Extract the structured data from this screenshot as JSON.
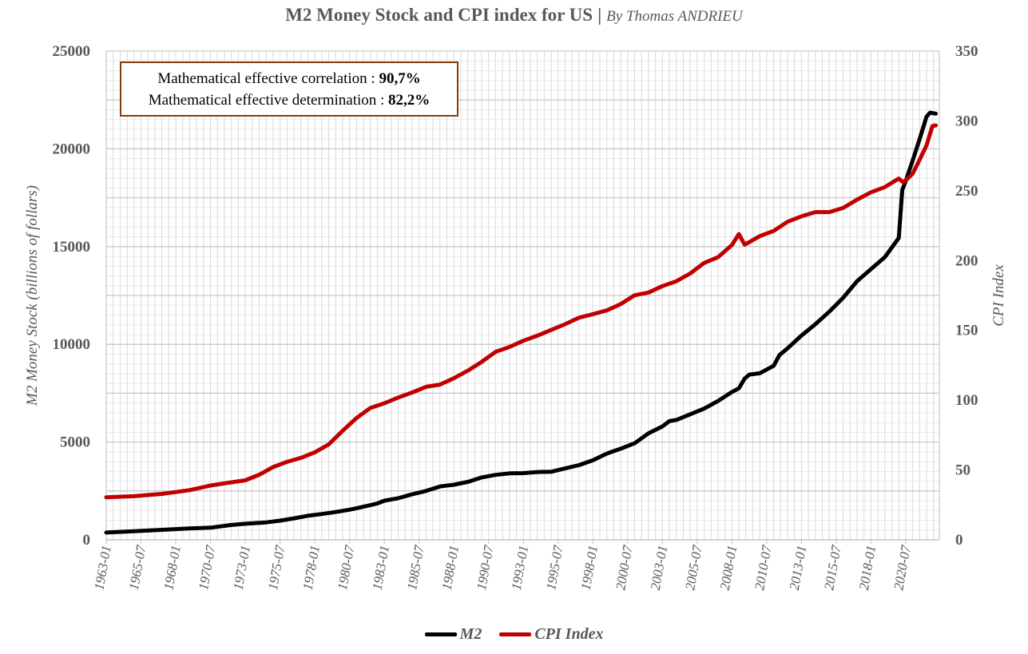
{
  "title": "M2 Money Stock and CPI index for US",
  "title_separator": "|",
  "subtitle": "By Thomas ANDRIEU",
  "stats": {
    "correlation_label": "Mathematical effective correlation : ",
    "correlation_value": "90,7%",
    "determination_label": "Mathematical effective determination : ",
    "determination_value": "82,2%"
  },
  "legend": {
    "m2_label": "M2",
    "cpi_label": "CPI Index"
  },
  "colors": {
    "m2": "#000000",
    "cpi": "#c00000",
    "box_border": "#843c0c",
    "grid": "#d9d9d9"
  },
  "chart_data": {
    "type": "line",
    "title": "M2 Money Stock and CPI index for US",
    "subtitle": "By Thomas ANDRIEU",
    "ylabel": "M2 Money Stock (billions of follars)",
    "y2label": "CPI Index",
    "xlabel": "",
    "ylim": [
      0,
      25000
    ],
    "y2lim": [
      0,
      350
    ],
    "xlim": [
      "1963-01",
      "2022-12"
    ],
    "y_ticks": [
      "0",
      "5000",
      "10000",
      "15000",
      "20000",
      "25000"
    ],
    "y2_ticks": [
      "0",
      "50",
      "100",
      "150",
      "200",
      "250",
      "300",
      "350"
    ],
    "x_ticks": [
      "1963-01",
      "1965-07",
      "1968-01",
      "1970-07",
      "1973-01",
      "1975-07",
      "1978-01",
      "1980-07",
      "1983-01",
      "1985-07",
      "1988-01",
      "1990-07",
      "1993-01",
      "1995-07",
      "1998-01",
      "2000-07",
      "2003-01",
      "2005-07",
      "2008-01",
      "2010-07",
      "2013-01",
      "2015-07",
      "2018-01",
      "2020-07"
    ],
    "grid": true,
    "legend_position": "bottom",
    "series": [
      {
        "name": "M2",
        "axis": "left",
        "points": [
          [
            "1963-01",
            370
          ],
          [
            "1965-01",
            440
          ],
          [
            "1967-01",
            510
          ],
          [
            "1969-01",
            580
          ],
          [
            "1970-07",
            620
          ],
          [
            "1972-01",
            760
          ],
          [
            "1973-01",
            820
          ],
          [
            "1974-07",
            890
          ],
          [
            "1975-07",
            980
          ],
          [
            "1976-07",
            1100
          ],
          [
            "1977-07",
            1230
          ],
          [
            "1978-07",
            1320
          ],
          [
            "1979-07",
            1420
          ],
          [
            "1980-07",
            1540
          ],
          [
            "1981-07",
            1690
          ],
          [
            "1982-07",
            1860
          ],
          [
            "1983-01",
            2000
          ],
          [
            "1984-01",
            2130
          ],
          [
            "1985-01",
            2330
          ],
          [
            "1986-01",
            2500
          ],
          [
            "1987-01",
            2730
          ],
          [
            "1988-01",
            2820
          ],
          [
            "1989-01",
            2960
          ],
          [
            "1990-01",
            3190
          ],
          [
            "1991-01",
            3320
          ],
          [
            "1992-01",
            3400
          ],
          [
            "1993-01",
            3410
          ],
          [
            "1994-01",
            3470
          ],
          [
            "1995-01",
            3480
          ],
          [
            "1996-01",
            3650
          ],
          [
            "1997-01",
            3820
          ],
          [
            "1998-01",
            4070
          ],
          [
            "1999-01",
            4410
          ],
          [
            "2000-01",
            4660
          ],
          [
            "2001-01",
            4940
          ],
          [
            "2002-01",
            5450
          ],
          [
            "2003-01",
            5800
          ],
          [
            "2003-07",
            6070
          ],
          [
            "2004-01",
            6130
          ],
          [
            "2005-01",
            6420
          ],
          [
            "2006-01",
            6710
          ],
          [
            "2007-01",
            7100
          ],
          [
            "2008-01",
            7560
          ],
          [
            "2008-07",
            7750
          ],
          [
            "2008-12",
            8250
          ],
          [
            "2009-04",
            8450
          ],
          [
            "2010-01",
            8520
          ],
          [
            "2011-01",
            8900
          ],
          [
            "2011-06",
            9450
          ],
          [
            "2012-01",
            9800
          ],
          [
            "2013-01",
            10450
          ],
          [
            "2014-01",
            11030
          ],
          [
            "2015-01",
            11670
          ],
          [
            "2016-01",
            12380
          ],
          [
            "2017-01",
            13230
          ],
          [
            "2018-01",
            13850
          ],
          [
            "2019-01",
            14460
          ],
          [
            "2020-01",
            15440
          ],
          [
            "2020-04",
            17900
          ],
          [
            "2020-07",
            18350
          ],
          [
            "2021-01",
            19400
          ],
          [
            "2021-07",
            20500
          ],
          [
            "2022-01",
            21650
          ],
          [
            "2022-04",
            21850
          ],
          [
            "2022-09",
            21800
          ]
        ]
      },
      {
        "name": "CPI Index",
        "axis": "right",
        "points": [
          [
            "1963-01",
            30.4
          ],
          [
            "1965-01",
            31.2
          ],
          [
            "1967-01",
            32.9
          ],
          [
            "1969-01",
            35.6
          ],
          [
            "1970-07",
            38.9
          ],
          [
            "1972-01",
            41.2
          ],
          [
            "1973-01",
            42.6
          ],
          [
            "1974-01",
            46.6
          ],
          [
            "1975-01",
            52.1
          ],
          [
            "1976-01",
            55.8
          ],
          [
            "1977-01",
            58.7
          ],
          [
            "1978-01",
            62.7
          ],
          [
            "1979-01",
            68.3
          ],
          [
            "1980-01",
            78.0
          ],
          [
            "1981-01",
            87.2
          ],
          [
            "1982-01",
            94.4
          ],
          [
            "1983-01",
            97.8
          ],
          [
            "1984-01",
            101.9
          ],
          [
            "1985-01",
            105.5
          ],
          [
            "1986-01",
            109.6
          ],
          [
            "1987-01",
            111.2
          ],
          [
            "1988-01",
            115.7
          ],
          [
            "1989-01",
            121.1
          ],
          [
            "1990-01",
            127.4
          ],
          [
            "1991-01",
            134.6
          ],
          [
            "1992-01",
            138.1
          ],
          [
            "1993-01",
            142.6
          ],
          [
            "1994-01",
            146.2
          ],
          [
            "1995-01",
            150.3
          ],
          [
            "1996-01",
            154.4
          ],
          [
            "1997-01",
            159.1
          ],
          [
            "1998-01",
            161.6
          ],
          [
            "1999-01",
            164.3
          ],
          [
            "2000-01",
            168.8
          ],
          [
            "2001-01",
            175.1
          ],
          [
            "2002-01",
            177.1
          ],
          [
            "2003-01",
            181.7
          ],
          [
            "2004-01",
            185.2
          ],
          [
            "2005-01",
            190.7
          ],
          [
            "2006-01",
            198.3
          ],
          [
            "2007-01",
            202.4
          ],
          [
            "2008-01",
            211.1
          ],
          [
            "2008-07",
            219.0
          ],
          [
            "2008-12",
            211.4
          ],
          [
            "2010-01",
            217.5
          ],
          [
            "2011-01",
            221.2
          ],
          [
            "2012-01",
            227.8
          ],
          [
            "2013-01",
            231.7
          ],
          [
            "2014-01",
            234.7
          ],
          [
            "2015-01",
            234.7
          ],
          [
            "2016-01",
            237.7
          ],
          [
            "2017-01",
            243.6
          ],
          [
            "2018-01",
            248.9
          ],
          [
            "2019-01",
            252.6
          ],
          [
            "2020-01",
            258.7
          ],
          [
            "2020-05",
            255.9
          ],
          [
            "2021-01",
            262.2
          ],
          [
            "2021-07",
            272.2
          ],
          [
            "2022-01",
            282.5
          ],
          [
            "2022-06",
            296.3
          ],
          [
            "2022-09",
            296.8
          ]
        ]
      }
    ]
  }
}
